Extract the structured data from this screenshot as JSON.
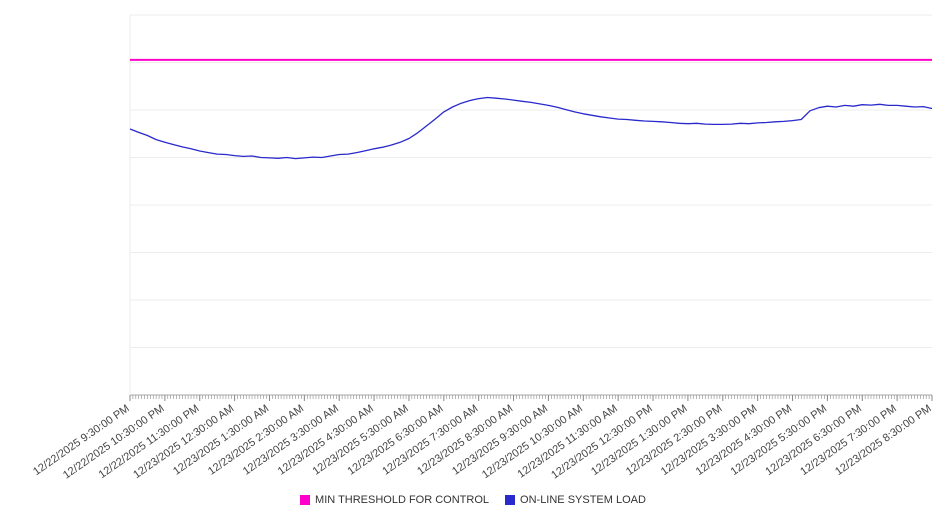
{
  "chart_data": {
    "type": "line",
    "title": "",
    "xlabel": "",
    "ylabel": "",
    "ylim": [
      0,
      100
    ],
    "grid": {
      "divisions": 8,
      "color": "#ececec",
      "axis_color": "#aaaaaa",
      "tick_color": "#888888"
    },
    "background": "#ffffff",
    "x_tick_labels": [
      "12/22/2025 9:30:00 PM",
      "12/22/2025 10:30:00 PM",
      "12/22/2025 11:30:00 PM",
      "12/23/2025 12:30:00 AM",
      "12/23/2025 1:30:00 AM",
      "12/23/2025 2:30:00 AM",
      "12/23/2025 3:30:00 AM",
      "12/23/2025 4:30:00 AM",
      "12/23/2025 5:30:00 AM",
      "12/23/2025 6:30:00 AM",
      "12/23/2025 7:30:00 AM",
      "12/23/2025 8:30:00 AM",
      "12/23/2025 9:30:00 AM",
      "12/23/2025 10:30:00 AM",
      "12/23/2025 11:30:00 AM",
      "12/23/2025 12:30:00 PM",
      "12/23/2025 1:30:00 PM",
      "12/23/2025 2:30:00 PM",
      "12/23/2025 3:30:00 PM",
      "12/23/2025 4:30:00 PM",
      "12/23/2025 5:30:00 PM",
      "12/23/2025 6:30:00 PM",
      "12/23/2025 7:30:00 PM",
      "12/23/2025 8:30:00 PM"
    ],
    "series": [
      {
        "name": "MIN THRESHOLD FOR CONTROL",
        "type": "threshold",
        "color": "#ff00cc",
        "value": 88.2
      },
      {
        "name": "ON-LINE SYSTEM LOAD",
        "type": "line",
        "color": "#2929cc",
        "points_per_hour": 4,
        "values": [
          70.0,
          69.1,
          68.3,
          67.2,
          66.5,
          65.9,
          65.3,
          64.8,
          64.2,
          63.8,
          63.4,
          63.3,
          63.0,
          62.8,
          62.9,
          62.5,
          62.4,
          62.3,
          62.5,
          62.2,
          62.4,
          62.6,
          62.5,
          62.9,
          63.3,
          63.4,
          63.8,
          64.3,
          64.8,
          65.2,
          65.8,
          66.5,
          67.5,
          69.0,
          70.8,
          72.6,
          74.5,
          75.8,
          76.8,
          77.5,
          78.0,
          78.3,
          78.1,
          77.9,
          77.6,
          77.3,
          77.0,
          76.6,
          76.2,
          75.7,
          75.1,
          74.5,
          74.0,
          73.6,
          73.2,
          72.9,
          72.6,
          72.5,
          72.3,
          72.1,
          72.0,
          71.9,
          71.7,
          71.5,
          71.4,
          71.5,
          71.3,
          71.2,
          71.2,
          71.3,
          71.5,
          71.4,
          71.6,
          71.7,
          71.9,
          72.0,
          72.2,
          72.5,
          74.8,
          75.6,
          76.0,
          75.8,
          76.2,
          76.0,
          76.4,
          76.3,
          76.5,
          76.2,
          76.2,
          76.0,
          75.8,
          75.9,
          75.4
        ]
      }
    ],
    "legend": {
      "position": "bottom"
    }
  }
}
